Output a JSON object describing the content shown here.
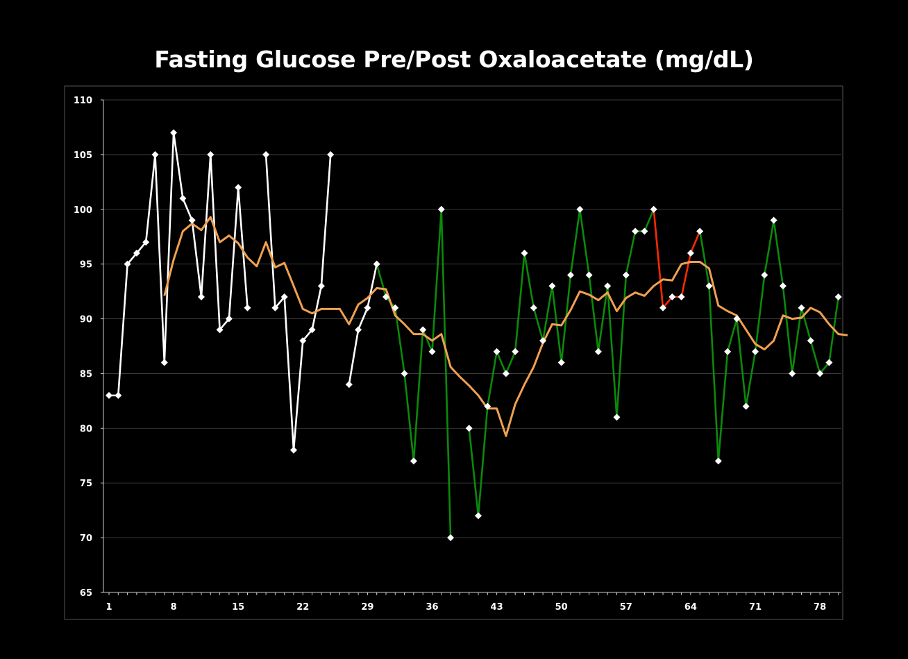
{
  "chart_data": {
    "type": "line",
    "title": "Fasting Glucose Pre/Post Oxaloacetate (mg/dL)",
    "xlabel": "",
    "ylabel": "",
    "ylim": [
      65,
      110
    ],
    "xlim": [
      1,
      80
    ],
    "yticks": [
      "65",
      "70",
      "75",
      "80",
      "85",
      "90",
      "95",
      "100",
      "105",
      "110"
    ],
    "xticks": [
      "1",
      "8",
      "15",
      "22",
      "29",
      "36",
      "43",
      "50",
      "57",
      "64",
      "71",
      "78"
    ],
    "grid": true,
    "legend": "none",
    "colors": {
      "background": "#000000",
      "grid": "#3a3a3a",
      "axis": "#cccccc",
      "pre_series": "#ffffff",
      "post_series": "#0a8a0a",
      "highlight_series": "#ff2a00",
      "moving_average": "#f0a050",
      "markers": "#ffffff"
    },
    "x": [
      1,
      2,
      3,
      4,
      5,
      6,
      7,
      8,
      9,
      10,
      11,
      12,
      13,
      14,
      15,
      16,
      17,
      18,
      19,
      20,
      21,
      22,
      23,
      24,
      25,
      26,
      27,
      28,
      29,
      30,
      31,
      32,
      33,
      34,
      35,
      36,
      37,
      38,
      39,
      40,
      41,
      42,
      43,
      44,
      45,
      46,
      47,
      48,
      49,
      50,
      51,
      52,
      53,
      54,
      55,
      56,
      57,
      58,
      59,
      60,
      61,
      62,
      63,
      64,
      65,
      66,
      67,
      68,
      69,
      70,
      71,
      72,
      73,
      74,
      75,
      76,
      77,
      78,
      79,
      80
    ],
    "values": [
      83,
      83,
      95,
      96,
      97,
      105,
      86,
      107,
      101,
      99,
      92,
      105,
      89,
      90,
      102,
      91,
      null,
      105,
      91,
      92,
      78,
      88,
      89,
      93,
      105,
      null,
      84,
      89,
      91,
      95,
      92,
      91,
      85,
      77,
      89,
      87,
      100,
      70,
      null,
      80,
      72,
      82,
      87,
      85,
      87,
      96,
      91,
      88,
      93,
      86,
      94,
      100,
      94,
      87,
      93,
      81,
      94,
      98,
      98,
      100,
      91,
      92,
      92,
      96,
      98,
      93,
      77,
      87,
      90,
      82,
      87,
      94,
      99,
      93,
      85,
      91,
      88,
      85,
      86,
      92
    ],
    "segments": [
      {
        "series": "pre",
        "from": 1,
        "to": 30
      },
      {
        "series": "post",
        "from": 30,
        "to": 60
      },
      {
        "series": "highlight",
        "from": 60,
        "to": 65
      },
      {
        "series": "post",
        "from": 65,
        "to": 80
      }
    ],
    "moving_average": {
      "start_x": 7,
      "values": [
        92.1,
        95.4,
        98.0,
        98.7,
        98.1,
        99.3,
        97.0,
        97.6,
        96.9,
        95.6,
        94.8,
        97.0,
        94.7,
        95.1,
        93.0,
        90.9,
        90.5,
        90.9,
        90.9,
        90.9,
        89.5,
        91.3,
        91.9,
        92.8,
        92.7,
        90.3,
        89.5,
        88.6,
        88.6,
        88.0,
        88.6,
        85.6,
        84.7,
        83.9,
        83.0,
        81.8,
        81.8,
        79.3,
        82.2,
        84.0,
        85.6,
        87.8,
        89.5,
        89.4,
        90.8,
        92.5,
        92.2,
        91.7,
        92.4,
        90.7,
        91.9,
        92.4,
        92.1,
        93.0,
        93.6,
        93.5,
        95.0,
        95.2,
        95.2,
        94.6,
        91.2,
        90.7,
        90.3,
        89.0,
        87.7,
        87.2,
        88.0,
        90.3,
        90.0,
        90.1,
        91.0,
        90.6,
        89.5,
        88.6,
        88.5
      ]
    }
  }
}
